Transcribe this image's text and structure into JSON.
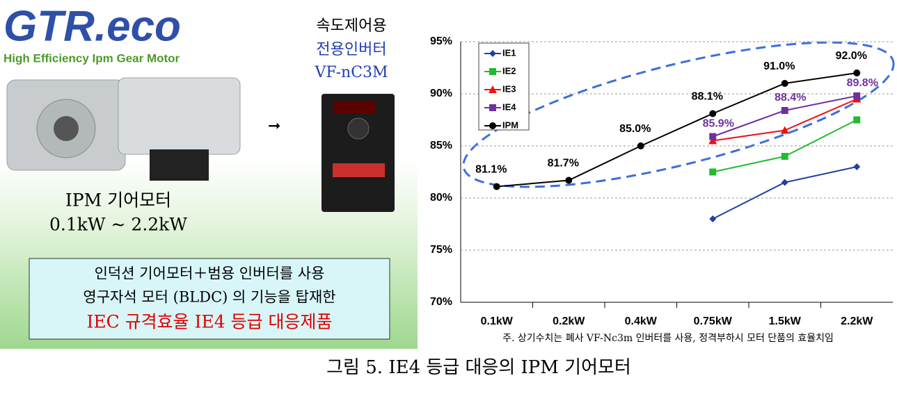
{
  "logo": {
    "name": "GTR.eco",
    "tagline": "High Efficiency Ipm Gear Motor"
  },
  "inverter": {
    "lines": [
      "속도제어용",
      "전용인버터",
      "VF-nC3M"
    ]
  },
  "motor": {
    "lines": [
      "IPM 기어모터",
      "0.1kW ~ 2.2kW"
    ]
  },
  "callout": {
    "lines": [
      "인덕션 기어모터＋범용 인버터를 사용",
      "영구자석 모터 (BLDC) 의 기능을 탑재한",
      "IEC 규격효율 IE4 등급 대응제품"
    ]
  },
  "caption": "그림 5. IE4 등급 대응의 IPM 기어모터",
  "chart_data": {
    "type": "line",
    "categories": [
      "0.1kW",
      "0.2kW",
      "0.4kW",
      "0.75kW",
      "1.5kW",
      "2.2kW"
    ],
    "ylim": [
      70,
      95
    ],
    "yticks": [
      {
        "value": 70,
        "label": "70%"
      },
      {
        "value": 75,
        "label": "75%"
      },
      {
        "value": 80,
        "label": "80%"
      },
      {
        "value": 85,
        "label": "85%"
      },
      {
        "value": 90,
        "label": "90%"
      },
      {
        "value": 95,
        "label": "95%"
      }
    ],
    "grid": true,
    "legend": "upper left",
    "annotation": "주. 상기수치는 폐사 VF-Nc3m 인버터를 사용, 정격부하시 모터 단품의 효율치임",
    "series": [
      {
        "name": "IE1",
        "color": "#2040a0",
        "marker": "diamond",
        "values": [
          null,
          null,
          null,
          78,
          81.5,
          83
        ]
      },
      {
        "name": "IE2",
        "color": "#22bb33",
        "marker": "square",
        "values": [
          null,
          null,
          null,
          82.5,
          84,
          87.5
        ]
      },
      {
        "name": "IE3",
        "color": "#ee1111",
        "marker": "triangle",
        "values": [
          null,
          null,
          null,
          85.5,
          86.5,
          89.5
        ]
      },
      {
        "name": "IE4",
        "color": "#7030a0",
        "marker": "square",
        "values": [
          null,
          null,
          null,
          85.9,
          88.4,
          89.8
        ],
        "value_labels": [
          null,
          null,
          null,
          "85.9%",
          "88.4%",
          "89.8%"
        ]
      },
      {
        "name": "IPM",
        "color": "#000000",
        "marker": "circle",
        "values": [
          81.1,
          81.7,
          85.0,
          88.1,
          91.0,
          92.0
        ],
        "value_labels": [
          "81.1%",
          "81.7%",
          "85.0%",
          "88.1%",
          "91.0%",
          "92.0%"
        ]
      }
    ]
  }
}
